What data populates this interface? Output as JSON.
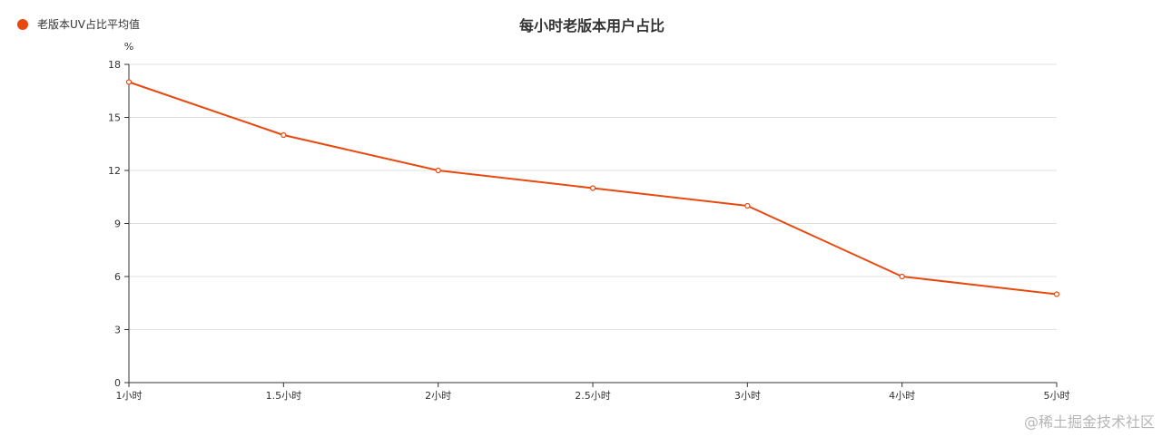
{
  "chart_data": {
    "type": "line",
    "title": "每小时老版本用户占比",
    "ylabel": "%",
    "xlabel": "",
    "categories": [
      "1小时",
      "1.5小时",
      "2小时",
      "2.5小时",
      "3小时",
      "4小时",
      "5小时"
    ],
    "series": [
      {
        "name": "老版本UV占比平均值",
        "values": [
          17,
          14,
          12,
          11,
          10,
          6,
          5
        ]
      }
    ],
    "ylim": [
      0,
      18
    ],
    "yticks": [
      0,
      3,
      6,
      9,
      12,
      15,
      18
    ],
    "grid": true,
    "legend_position": "top-left",
    "series_color": "#e8490f"
  },
  "watermark": "@稀土掘金技术社区"
}
